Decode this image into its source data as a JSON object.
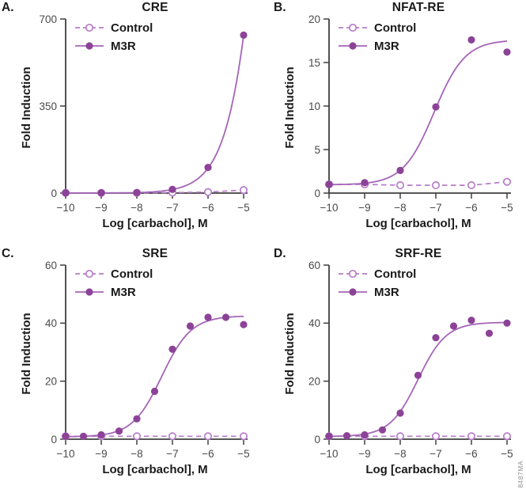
{
  "figure": {
    "watermark": "8487MA",
    "colors": {
      "m3r_marker": "#8c4397",
      "m3r_line": "#a565b8",
      "control": "#b77cc9",
      "axis": "#3f3f3f",
      "tick_label": "#4a4a4a",
      "text": "#1a1a1a",
      "watermark": "#8f8f8f",
      "background": "#ffffff"
    }
  },
  "chart_data": [
    {
      "panel_label": "A.",
      "title": "CRE",
      "type": "line",
      "x_label": "Log [carbachol], M",
      "y_label": "Fold Induction",
      "xlim": [
        -10,
        -5
      ],
      "ylim": [
        0,
        700
      ],
      "x_ticks": [
        -10,
        -9,
        -8,
        -7,
        -6,
        -5
      ],
      "x_tick_labels": [
        "−10",
        "−9",
        "−8",
        "−7",
        "−6",
        "−5"
      ],
      "y_ticks": [
        0,
        350,
        700
      ],
      "grid": false,
      "legend_position": "top-left",
      "series": [
        {
          "name": "Control",
          "marker": "open-circle",
          "line_style": "dashed",
          "x": [
            -10,
            -9,
            -8,
            -7,
            -6,
            -5
          ],
          "y": [
            1,
            1,
            1,
            2,
            4,
            12
          ]
        },
        {
          "name": "M3R",
          "marker": "filled-circle",
          "line_style": "solid",
          "x": [
            -10,
            -9,
            -8,
            -7,
            -6,
            -5
          ],
          "y": [
            1,
            1,
            2,
            15,
            103,
            635
          ],
          "fit": {
            "bottom": 0,
            "top": 5130,
            "logec50": -4.0,
            "hill": 0.85
          }
        }
      ]
    },
    {
      "panel_label": "B.",
      "title": "NFAT-RE",
      "type": "line",
      "x_label": "Log [carbachol], M",
      "y_label": "Fold Induction",
      "xlim": [
        -10,
        -5
      ],
      "ylim": [
        0,
        20
      ],
      "x_ticks": [
        -10,
        -9,
        -8,
        -7,
        -6,
        -5
      ],
      "x_tick_labels": [
        "−10",
        "−9",
        "−8",
        "−7",
        "−6",
        "−5"
      ],
      "y_ticks": [
        0,
        5,
        10,
        15,
        20
      ],
      "grid": false,
      "legend_position": "top-left",
      "series": [
        {
          "name": "Control",
          "marker": "open-circle",
          "line_style": "dashed",
          "x": [
            -10,
            -9,
            -8,
            -7,
            -6,
            -5
          ],
          "y": [
            1.0,
            1.0,
            0.9,
            0.9,
            0.9,
            1.3
          ]
        },
        {
          "name": "M3R",
          "marker": "filled-circle",
          "line_style": "solid",
          "x": [
            -10,
            -9,
            -8,
            -7,
            -6,
            -5
          ],
          "y": [
            1.0,
            1.2,
            2.6,
            9.9,
            17.6,
            16.2
          ],
          "fit": {
            "bottom": 0.95,
            "top": 17.6,
            "logec50": -7.05,
            "hill": 1.0
          }
        }
      ]
    },
    {
      "panel_label": "C.",
      "title": "SRE",
      "type": "line",
      "x_label": "Log [carbachol], M",
      "y_label": "Fold Induction",
      "xlim": [
        -10,
        -5
      ],
      "ylim": [
        0,
        60
      ],
      "x_ticks": [
        -10,
        -9,
        -8,
        -7,
        -6,
        -5
      ],
      "x_tick_labels": [
        "−10",
        "−9",
        "−8",
        "−7",
        "−6",
        "−5"
      ],
      "y_ticks": [
        0,
        20,
        40,
        60
      ],
      "grid": false,
      "legend_position": "top-left",
      "series": [
        {
          "name": "Control",
          "marker": "open-circle",
          "line_style": "dashed",
          "x": [
            -10,
            -9,
            -8,
            -7,
            -6,
            -5
          ],
          "y": [
            1,
            1,
            1,
            1,
            1,
            1
          ]
        },
        {
          "name": "M3R",
          "marker": "filled-circle",
          "line_style": "solid",
          "x": [
            -10,
            -9.5,
            -9,
            -8.5,
            -8,
            -7.5,
            -7,
            -6.5,
            -6,
            -5.5,
            -5
          ],
          "y": [
            1,
            1,
            1.5,
            2.8,
            7,
            16.5,
            31,
            39,
            42,
            42,
            39.5
          ],
          "fit": {
            "bottom": 0.8,
            "top": 42.5,
            "logec50": -7.3,
            "hill": 1.05
          }
        }
      ]
    },
    {
      "panel_label": "D.",
      "title": "SRF-RE",
      "type": "line",
      "x_label": "Log [carbachol], M",
      "y_label": "Fold Induction",
      "xlim": [
        -10,
        -5
      ],
      "ylim": [
        0,
        60
      ],
      "x_ticks": [
        -10,
        -9,
        -8,
        -7,
        -6,
        -5
      ],
      "x_tick_labels": [
        "−10",
        "−9",
        "−8",
        "−7",
        "−6",
        "−5"
      ],
      "y_ticks": [
        0,
        20,
        40,
        60
      ],
      "grid": false,
      "legend_position": "top-left",
      "series": [
        {
          "name": "Control",
          "marker": "open-circle",
          "line_style": "dashed",
          "x": [
            -10,
            -9,
            -8,
            -7,
            -6,
            -5
          ],
          "y": [
            1,
            1,
            1,
            1,
            1,
            1
          ]
        },
        {
          "name": "M3R",
          "marker": "filled-circle",
          "line_style": "solid",
          "x": [
            -10,
            -9.5,
            -9,
            -8.5,
            -8,
            -7.5,
            -7,
            -6.5,
            -6,
            -5.5,
            -5
          ],
          "y": [
            1,
            1.2,
            1.5,
            3.2,
            9,
            22,
            35,
            39,
            41,
            36.5,
            40
          ],
          "fit": {
            "bottom": 0.9,
            "top": 40.3,
            "logec50": -7.5,
            "hill": 1.1
          }
        }
      ]
    }
  ]
}
